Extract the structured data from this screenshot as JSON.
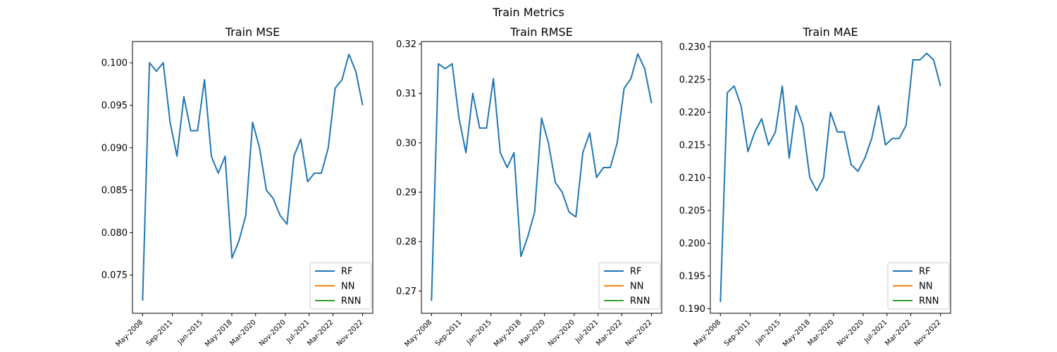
{
  "suptitle": "Train Metrics",
  "colors": {
    "RF": "#1f77b4",
    "NN": "#ff7f0e",
    "RNN": "#2ca02c"
  },
  "chart_data": [
    {
      "type": "line",
      "title": "Train MSE",
      "xlabel": "",
      "ylabel": "",
      "legend": "lower-right",
      "grid": false,
      "ylim": [
        0.0705,
        0.1025
      ],
      "yticks": [
        "0.075",
        "0.080",
        "0.085",
        "0.090",
        "0.095",
        "0.100"
      ],
      "xtick_labels": [
        "May-2008",
        "Sep-2011",
        "Jan-2015",
        "May-2018",
        "Mar-2020",
        "Nov-2020",
        "Jul-2021",
        "Mar-2022",
        "Nov-2022"
      ],
      "series": [
        {
          "name": "RF",
          "values": [
            0.072,
            0.1,
            0.099,
            0.1,
            0.093,
            0.089,
            0.096,
            0.092,
            0.092,
            0.098,
            0.089,
            0.087,
            0.089,
            0.077,
            0.079,
            0.082,
            0.093,
            0.09,
            0.085,
            0.084,
            0.082,
            0.081,
            0.089,
            0.091,
            0.086,
            0.087,
            0.087,
            0.09,
            0.097,
            0.098,
            0.101,
            0.099,
            0.095
          ]
        },
        {
          "name": "NN",
          "values": []
        },
        {
          "name": "RNN",
          "values": []
        }
      ]
    },
    {
      "type": "line",
      "title": "Train RMSE",
      "xlabel": "",
      "ylabel": "",
      "legend": "lower-right",
      "grid": false,
      "ylim": [
        0.2655,
        0.3205
      ],
      "yticks": [
        "0.27",
        "0.28",
        "0.29",
        "0.30",
        "0.31",
        "0.32"
      ],
      "xtick_labels": [
        "May-2008",
        "Sep-2011",
        "Jan-2015",
        "May-2018",
        "Mar-2020",
        "Nov-2020",
        "Jul-2021",
        "Mar-2022",
        "Nov-2022"
      ],
      "series": [
        {
          "name": "RF",
          "values": [
            0.268,
            0.316,
            0.315,
            0.316,
            0.305,
            0.298,
            0.31,
            0.303,
            0.303,
            0.313,
            0.298,
            0.295,
            0.298,
            0.277,
            0.281,
            0.286,
            0.305,
            0.3,
            0.292,
            0.29,
            0.286,
            0.285,
            0.298,
            0.302,
            0.293,
            0.295,
            0.295,
            0.3,
            0.311,
            0.313,
            0.318,
            0.315,
            0.308
          ]
        },
        {
          "name": "NN",
          "values": []
        },
        {
          "name": "RNN",
          "values": []
        }
      ]
    },
    {
      "type": "line",
      "title": "Train MAE",
      "xlabel": "",
      "ylabel": "",
      "legend": "lower-right",
      "grid": false,
      "ylim": [
        0.1893,
        0.2308
      ],
      "yticks": [
        "0.190",
        "0.195",
        "0.200",
        "0.205",
        "0.210",
        "0.215",
        "0.220",
        "0.225",
        "0.230"
      ],
      "xtick_labels": [
        "May-2008",
        "Sep-2011",
        "Jan-2015",
        "May-2018",
        "Mar-2020",
        "Nov-2020",
        "Jul-2021",
        "Mar-2022",
        "Nov-2022"
      ],
      "series": [
        {
          "name": "RF",
          "values": [
            0.191,
            0.223,
            0.224,
            0.221,
            0.214,
            0.217,
            0.219,
            0.215,
            0.217,
            0.224,
            0.213,
            0.221,
            0.218,
            0.21,
            0.208,
            0.21,
            0.22,
            0.217,
            0.217,
            0.212,
            0.211,
            0.213,
            0.216,
            0.221,
            0.215,
            0.216,
            0.216,
            0.218,
            0.228,
            0.228,
            0.229,
            0.228,
            0.224
          ]
        },
        {
          "name": "NN",
          "values": []
        },
        {
          "name": "RNN",
          "values": []
        }
      ]
    }
  ]
}
